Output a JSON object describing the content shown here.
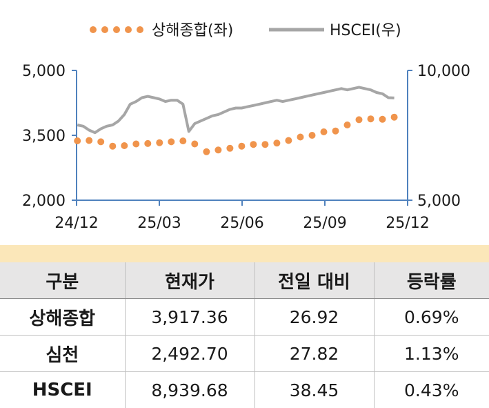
{
  "chart_data": {
    "type": "line",
    "legend": {
      "placement": "top",
      "entries": [
        {
          "label": "상해종합(좌)",
          "style": "dotted",
          "color": "#f0944c"
        },
        {
          "label": "HSCEI(우)",
          "style": "solid",
          "color": "#a6a6a6"
        }
      ]
    },
    "x_ticks": [
      "24/12",
      "25/03",
      "25/06",
      "25/09",
      "25/12"
    ],
    "y_left": {
      "ticks": [
        "5,000",
        "3,500",
        "2,000"
      ],
      "ylim": [
        2000,
        5000
      ]
    },
    "y_right": {
      "ticks": [
        "10,000",
        "5,000"
      ],
      "ylim": [
        5000,
        10000
      ]
    },
    "axis_color": "#4f81bd",
    "grid": false,
    "series": [
      {
        "name": "상해종합(좌)",
        "axis": "left",
        "color": "#f0944c",
        "x": [
          "2024-12-02",
          "2024-12-16",
          "2024-12-30",
          "2025-01-13",
          "2025-01-27",
          "2025-02-10",
          "2025-02-24",
          "2025-03-10",
          "2025-03-24",
          "2025-04-07",
          "2025-04-21",
          "2025-05-05",
          "2025-05-19",
          "2025-06-02",
          "2025-06-16",
          "2025-06-30",
          "2025-07-14",
          "2025-07-28",
          "2025-08-11",
          "2025-08-25",
          "2025-09-08",
          "2025-09-22",
          "2025-10-06",
          "2025-10-20",
          "2025-11-03",
          "2025-11-17",
          "2025-12-01",
          "2025-12-15"
        ],
        "values": [
          3372,
          3380,
          3350,
          3250,
          3260,
          3300,
          3310,
          3330,
          3350,
          3370,
          3300,
          3120,
          3160,
          3200,
          3250,
          3290,
          3290,
          3320,
          3380,
          3460,
          3500,
          3580,
          3600,
          3740,
          3860,
          3880,
          3870,
          3920
        ]
      },
      {
        "name": "HSCEI(우)",
        "axis": "right",
        "color": "#a6a6a6",
        "x": [
          "2024-12-02",
          "2024-12-09",
          "2024-12-16",
          "2024-12-23",
          "2024-12-30",
          "2025-01-06",
          "2025-01-13",
          "2025-01-20",
          "2025-01-27",
          "2025-02-03",
          "2025-02-10",
          "2025-02-17",
          "2025-02-24",
          "2025-03-03",
          "2025-03-10",
          "2025-03-17",
          "2025-03-24",
          "2025-03-31",
          "2025-04-07",
          "2025-04-14",
          "2025-04-21",
          "2025-04-28",
          "2025-05-05",
          "2025-05-12",
          "2025-05-19",
          "2025-05-26",
          "2025-06-02",
          "2025-06-09",
          "2025-06-16",
          "2025-06-23",
          "2025-06-30",
          "2025-07-07",
          "2025-07-14",
          "2025-07-21",
          "2025-07-28",
          "2025-08-04",
          "2025-08-11",
          "2025-08-18",
          "2025-08-25",
          "2025-09-01",
          "2025-09-08",
          "2025-09-15",
          "2025-09-22",
          "2025-09-29",
          "2025-10-06",
          "2025-10-13",
          "2025-10-20",
          "2025-10-27",
          "2025-11-03",
          "2025-11-10",
          "2025-11-17",
          "2025-11-24",
          "2025-12-01",
          "2025-12-08",
          "2025-12-15"
        ],
        "values": [
          7900,
          7850,
          7700,
          7600,
          7750,
          7850,
          7900,
          8050,
          8300,
          8700,
          8800,
          8950,
          9000,
          8950,
          8900,
          8800,
          8850,
          8850,
          8700,
          7650,
          7950,
          8050,
          8150,
          8250,
          8300,
          8400,
          8500,
          8550,
          8550,
          8600,
          8650,
          8700,
          8750,
          8800,
          8850,
          8800,
          8850,
          8900,
          8950,
          9000,
          9050,
          9100,
          9150,
          9200,
          9250,
          9300,
          9250,
          9300,
          9350,
          9300,
          9250,
          9150,
          9100,
          8950,
          8940
        ]
      }
    ]
  },
  "table": {
    "headers": [
      "구분",
      "현재가",
      "전일 대비",
      "등락률"
    ],
    "rows": [
      [
        "상해종합",
        "3,917.36",
        "26.92",
        "0.69%"
      ],
      [
        "심천",
        "2,492.70",
        "27.82",
        "1.13%"
      ],
      [
        "HSCEI",
        "8,939.68",
        "38.45",
        "0.43%"
      ]
    ]
  }
}
